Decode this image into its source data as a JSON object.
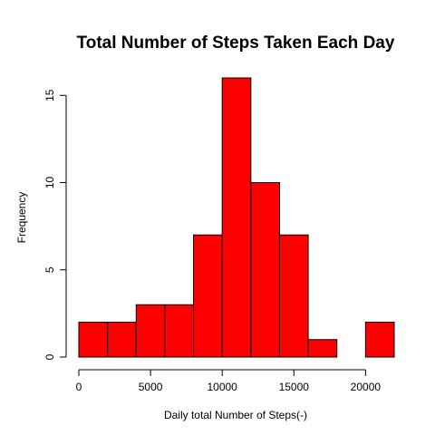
{
  "chart_data": {
    "type": "bar",
    "title": "Total Number of Steps Taken Each Day",
    "xlabel": "Daily total Number of Steps(-)",
    "ylabel": "Frequency",
    "bin_edges": [
      0,
      2000,
      4000,
      6000,
      8000,
      10000,
      12000,
      14000,
      16000,
      18000,
      20000,
      22000
    ],
    "counts": [
      2,
      2,
      3,
      3,
      7,
      16,
      10,
      7,
      1,
      0,
      2
    ],
    "x_ticks": [
      0,
      5000,
      10000,
      15000,
      20000
    ],
    "x_tick_labels": [
      "0",
      "5000",
      "10000",
      "15000",
      "20000"
    ],
    "y_ticks": [
      0,
      5,
      10,
      15
    ],
    "y_tick_labels": [
      "0",
      "5",
      "10",
      "15"
    ],
    "xlim": [
      0,
      22000
    ],
    "ylim": [
      0,
      16
    ],
    "grid": false,
    "bar_color": "#FF0000",
    "border_color": "#000000"
  }
}
